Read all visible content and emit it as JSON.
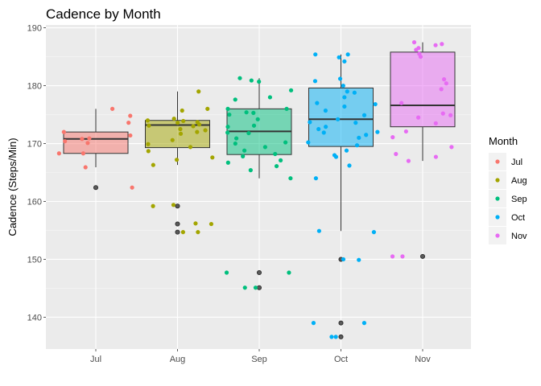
{
  "chart_data": {
    "type": "boxplot",
    "title": "Cadence by Month",
    "xlabel": "",
    "ylabel": "Cadence (Steps/Min)",
    "ylim": [
      134.5,
      190.5
    ],
    "yticks": [
      140,
      150,
      160,
      170,
      180,
      190
    ],
    "grid": true,
    "legend": {
      "title": "Month",
      "position": "right"
    },
    "categories": [
      "Jul",
      "Aug",
      "Sep",
      "Oct",
      "Nov"
    ],
    "colors": {
      "Jul": "#F8766D",
      "Aug": "#A3A500",
      "Sep": "#00BF7D",
      "Oct": "#00B0F6",
      "Nov": "#E76BF3"
    },
    "boxes": [
      {
        "category": "Jul",
        "min": 165.9,
        "q1": 168.3,
        "median": 170.8,
        "q3": 172.0,
        "max": 176.0,
        "outliers": [
          162.4
        ]
      },
      {
        "category": "Aug",
        "min": 166.3,
        "q1": 169.3,
        "median": 173.2,
        "q3": 174.0,
        "max": 179.0,
        "outliers": [
          159.2,
          156.1,
          154.7
        ]
      },
      {
        "category": "Sep",
        "min": 164.0,
        "q1": 168.1,
        "median": 172.1,
        "q3": 176.0,
        "max": 181.3,
        "outliers": [
          147.7,
          145.1
        ]
      },
      {
        "category": "Oct",
        "min": 154.9,
        "q1": 169.5,
        "median": 174.2,
        "q3": 179.6,
        "max": 185.4,
        "outliers": [
          150.0,
          139.0,
          136.6
        ]
      },
      {
        "category": "Nov",
        "min": 167.0,
        "q1": 172.9,
        "median": 176.6,
        "q3": 185.8,
        "max": 187.5,
        "outliers": [
          150.5
        ]
      }
    ],
    "points": [
      {
        "category": "Jul",
        "values": [
          174.8,
          176.0,
          173.6,
          172.0,
          171.4,
          170.9,
          170.8,
          170.1,
          170.4,
          168.3,
          168.3,
          165.9,
          162.4
        ]
      },
      {
        "category": "Aug",
        "values": [
          179.0,
          176.0,
          175.7,
          174.3,
          174.0,
          173.9,
          173.7,
          173.6,
          173.3,
          173.1,
          173.0,
          172.5,
          172.3,
          172.0,
          171.7,
          170.6,
          169.9,
          169.4,
          168.7,
          167.6,
          167.2,
          166.3,
          159.4,
          159.2,
          156.2,
          156.1,
          154.7,
          154.7
        ]
      },
      {
        "category": "Sep",
        "values": [
          181.3,
          180.9,
          180.7,
          179.2,
          178.0,
          177.6,
          176.0,
          176.0,
          175.4,
          175.3,
          175.0,
          174.2,
          173.1,
          172.9,
          171.9,
          171.8,
          170.9,
          170.2,
          170.0,
          169.4,
          168.8,
          168.2,
          167.8,
          167.1,
          166.7,
          166.1,
          165.4,
          164.0,
          147.7,
          147.7,
          145.1,
          145.1
        ]
      },
      {
        "category": "Oct",
        "values": [
          185.4,
          185.4,
          184.9,
          184.2,
          181.2,
          180.8,
          180.0,
          179.0,
          178.8,
          178.0,
          177.0,
          176.8,
          176.4,
          175.7,
          174.9,
          174.2,
          173.7,
          173.6,
          172.9,
          172.5,
          172.0,
          171.9,
          171.5,
          171.0,
          170.2,
          169.7,
          168.8,
          168.0,
          167.7,
          166.2,
          164.0,
          154.9,
          154.7,
          150.0,
          149.9,
          139.0,
          139.0,
          136.6,
          136.6
        ]
      },
      {
        "category": "Nov",
        "values": [
          187.5,
          187.2,
          187.0,
          186.5,
          186.2,
          185.5,
          185.0,
          181.1,
          180.4,
          179.4,
          177.0,
          175.2,
          174.9,
          174.5,
          173.5,
          172.1,
          171.1,
          169.4,
          168.2,
          167.7,
          167.0,
          150.5,
          150.5
        ]
      }
    ]
  }
}
